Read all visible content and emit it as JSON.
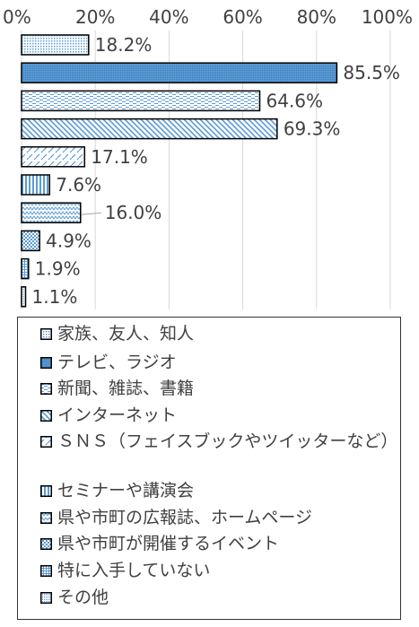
{
  "chart_data": {
    "type": "bar",
    "orientation": "horizontal",
    "xlim": [
      0,
      100
    ],
    "x_ticks": [
      "0%",
      "20%",
      "40%",
      "60%",
      "80%",
      "100%"
    ],
    "categories": [
      "家族、友人、知人",
      "テレビ、ラジオ",
      "新聞、雑誌、書籍",
      "インターネット",
      "ＳＮＳ（フェイスブックやツイッターなど）",
      "セミナーや講演会",
      "県や市町の広報誌、ホームページ",
      "県や市町が開催するイベント",
      "特に入手していない",
      "その他"
    ],
    "values": [
      18.2,
      85.5,
      64.6,
      69.3,
      17.1,
      7.6,
      16.0,
      4.9,
      1.9,
      1.1
    ],
    "value_labels": [
      "18.2%",
      "85.5%",
      "64.6%",
      "69.3%",
      "17.1%",
      "7.6%",
      "16.0%",
      "4.9%",
      "1.9%",
      "1.1%"
    ],
    "patterns": [
      "dots",
      "solid-fill",
      "dashes",
      "diagonal",
      "diagonal-dash",
      "vertical",
      "zigzag",
      "checker",
      "grid",
      "dots-dense"
    ],
    "colors": {
      "pattern": "#5b9bd5",
      "outline": "#000000",
      "text": "#404040"
    },
    "legend_position": "bottom",
    "legend": [
      "家族、友人、知人",
      "テレビ、ラジオ",
      "新聞、雑誌、書籍",
      "インターネット",
      "ＳＮＳ（フェイスブックやツイッターなど）",
      "セミナーや講演会",
      "県や市町の広報誌、ホームページ",
      "県や市町が開催するイベント",
      "特に入手していない",
      "その他"
    ]
  }
}
